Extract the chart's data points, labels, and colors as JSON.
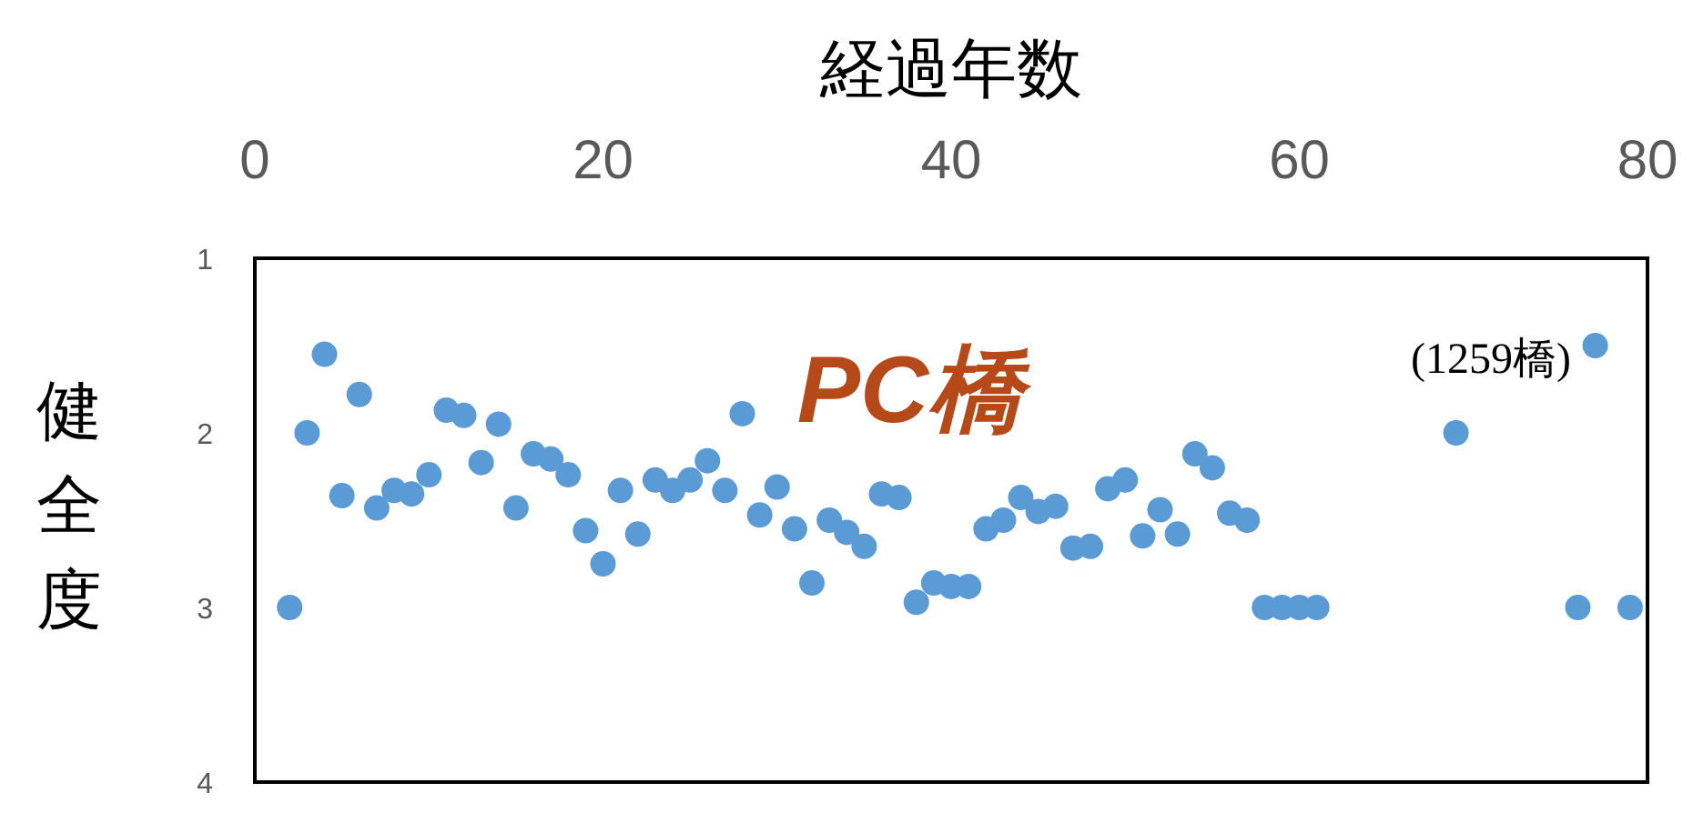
{
  "chart_data": {
    "type": "scatter",
    "title": "PC橋",
    "xlabel": "経過年数",
    "ylabel": "健全度",
    "annotations": [
      "(1259橋)"
    ],
    "x": [
      2,
      3,
      4,
      5,
      6,
      7,
      8,
      9,
      10,
      11,
      12,
      13,
      14,
      15,
      16,
      17,
      18,
      19,
      20,
      21,
      22,
      23,
      24,
      25,
      26,
      27,
      28,
      29,
      30,
      31,
      32,
      33,
      34,
      35,
      36,
      37,
      38,
      39,
      40,
      41,
      42,
      43,
      44,
      45,
      46,
      47,
      48,
      49,
      50,
      51,
      52,
      53,
      54,
      55,
      56,
      57,
      58,
      59,
      60,
      61,
      69,
      76,
      77,
      79
    ],
    "series": [
      {
        "color": "#5b9bd5",
        "values": [
          3.0,
          2.0,
          1.55,
          2.36,
          1.78,
          2.43,
          2.33,
          2.35,
          2.24,
          1.87,
          1.9,
          2.17,
          1.95,
          2.43,
          2.12,
          2.15,
          2.24,
          2.56,
          2.75,
          2.33,
          2.58,
          2.27,
          2.33,
          2.27,
          2.16,
          2.33,
          1.89,
          2.47,
          2.31,
          2.55,
          2.86,
          2.5,
          2.57,
          2.65,
          2.35,
          2.37,
          2.97,
          2.86,
          2.88,
          2.88,
          2.55,
          2.5,
          2.37,
          2.45,
          2.42,
          2.66,
          2.65,
          2.32,
          2.27,
          2.59,
          2.44,
          2.58,
          2.12,
          2.2,
          2.46,
          2.5,
          3.0,
          3.0,
          3.0,
          3.0,
          2.0,
          3.0,
          1.5,
          3.0
        ]
      }
    ],
    "xlim": [
      0,
      80
    ],
    "xticks": [
      0,
      20,
      40,
      60,
      80
    ],
    "ylim": [
      4,
      1
    ],
    "yticks": [
      1,
      2,
      3,
      4
    ],
    "marker": "circle",
    "grid": false
  }
}
